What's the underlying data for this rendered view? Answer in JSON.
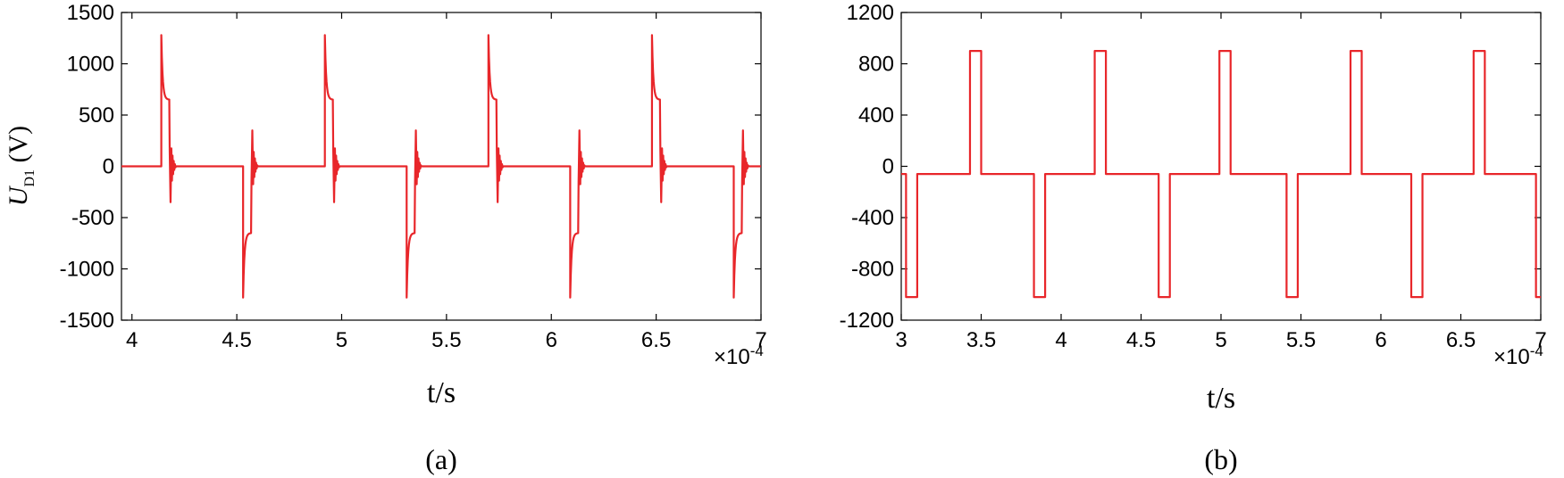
{
  "chart_data": [
    {
      "type": "line",
      "panel_label": "(a)",
      "xlabel": "t/s",
      "ylabel_main": "U",
      "ylabel_sub": "D1",
      "ylabel_unit": "(V)",
      "x_multiplier": "×10",
      "x_exponent": "-4",
      "xlim": [
        3.95,
        7.0
      ],
      "ylim": [
        -1500,
        1500
      ],
      "x_ticks": [
        "4",
        "4.5",
        "5",
        "5.5",
        "6",
        "6.5",
        "7"
      ],
      "x_tick_values": [
        4,
        4.5,
        5,
        5.5,
        6,
        6.5,
        7
      ],
      "y_ticks": [
        "1500",
        "1000",
        "500",
        "0",
        "-500",
        "-1000",
        "-1500"
      ],
      "y_tick_values": [
        1500,
        1000,
        500,
        0,
        -500,
        -1000,
        -1500
      ],
      "period": 0.78,
      "positive_pulse_times": [
        4.14,
        4.92,
        5.7,
        6.48
      ],
      "negative_pulse_times": [
        4.53,
        5.31,
        6.09,
        6.87
      ],
      "peak": 1280,
      "plateau": 650,
      "ring": 350,
      "series": [
        {
          "color": "#e8262a"
        }
      ]
    },
    {
      "type": "line",
      "panel_label": "(b)",
      "xlabel": "t/s",
      "x_multiplier": "×10",
      "x_exponent": "-4",
      "xlim": [
        3.0,
        7.0
      ],
      "ylim": [
        -1200,
        1200
      ],
      "x_ticks": [
        "3",
        "3.5",
        "4",
        "4.5",
        "5",
        "5.5",
        "6",
        "6.5",
        "7"
      ],
      "x_tick_values": [
        3,
        3.5,
        4,
        4.5,
        5,
        5.5,
        6,
        6.5,
        7
      ],
      "y_ticks": [
        "1200",
        "800",
        "400",
        "0",
        "-400",
        "-800",
        "-1200"
      ],
      "y_tick_values": [
        1200,
        800,
        400,
        0,
        -400,
        -800,
        -1200
      ],
      "baseline": -60,
      "high": 900,
      "low": -1020,
      "pulse_width": 0.07,
      "positive_pulse_starts": [
        3.43,
        4.21,
        4.99,
        5.81,
        6.58
      ],
      "negative_pulse_starts": [
        3.03,
        3.83,
        4.61,
        5.41,
        6.19,
        6.97
      ],
      "series": [
        {
          "color": "#e8262a"
        }
      ]
    }
  ]
}
